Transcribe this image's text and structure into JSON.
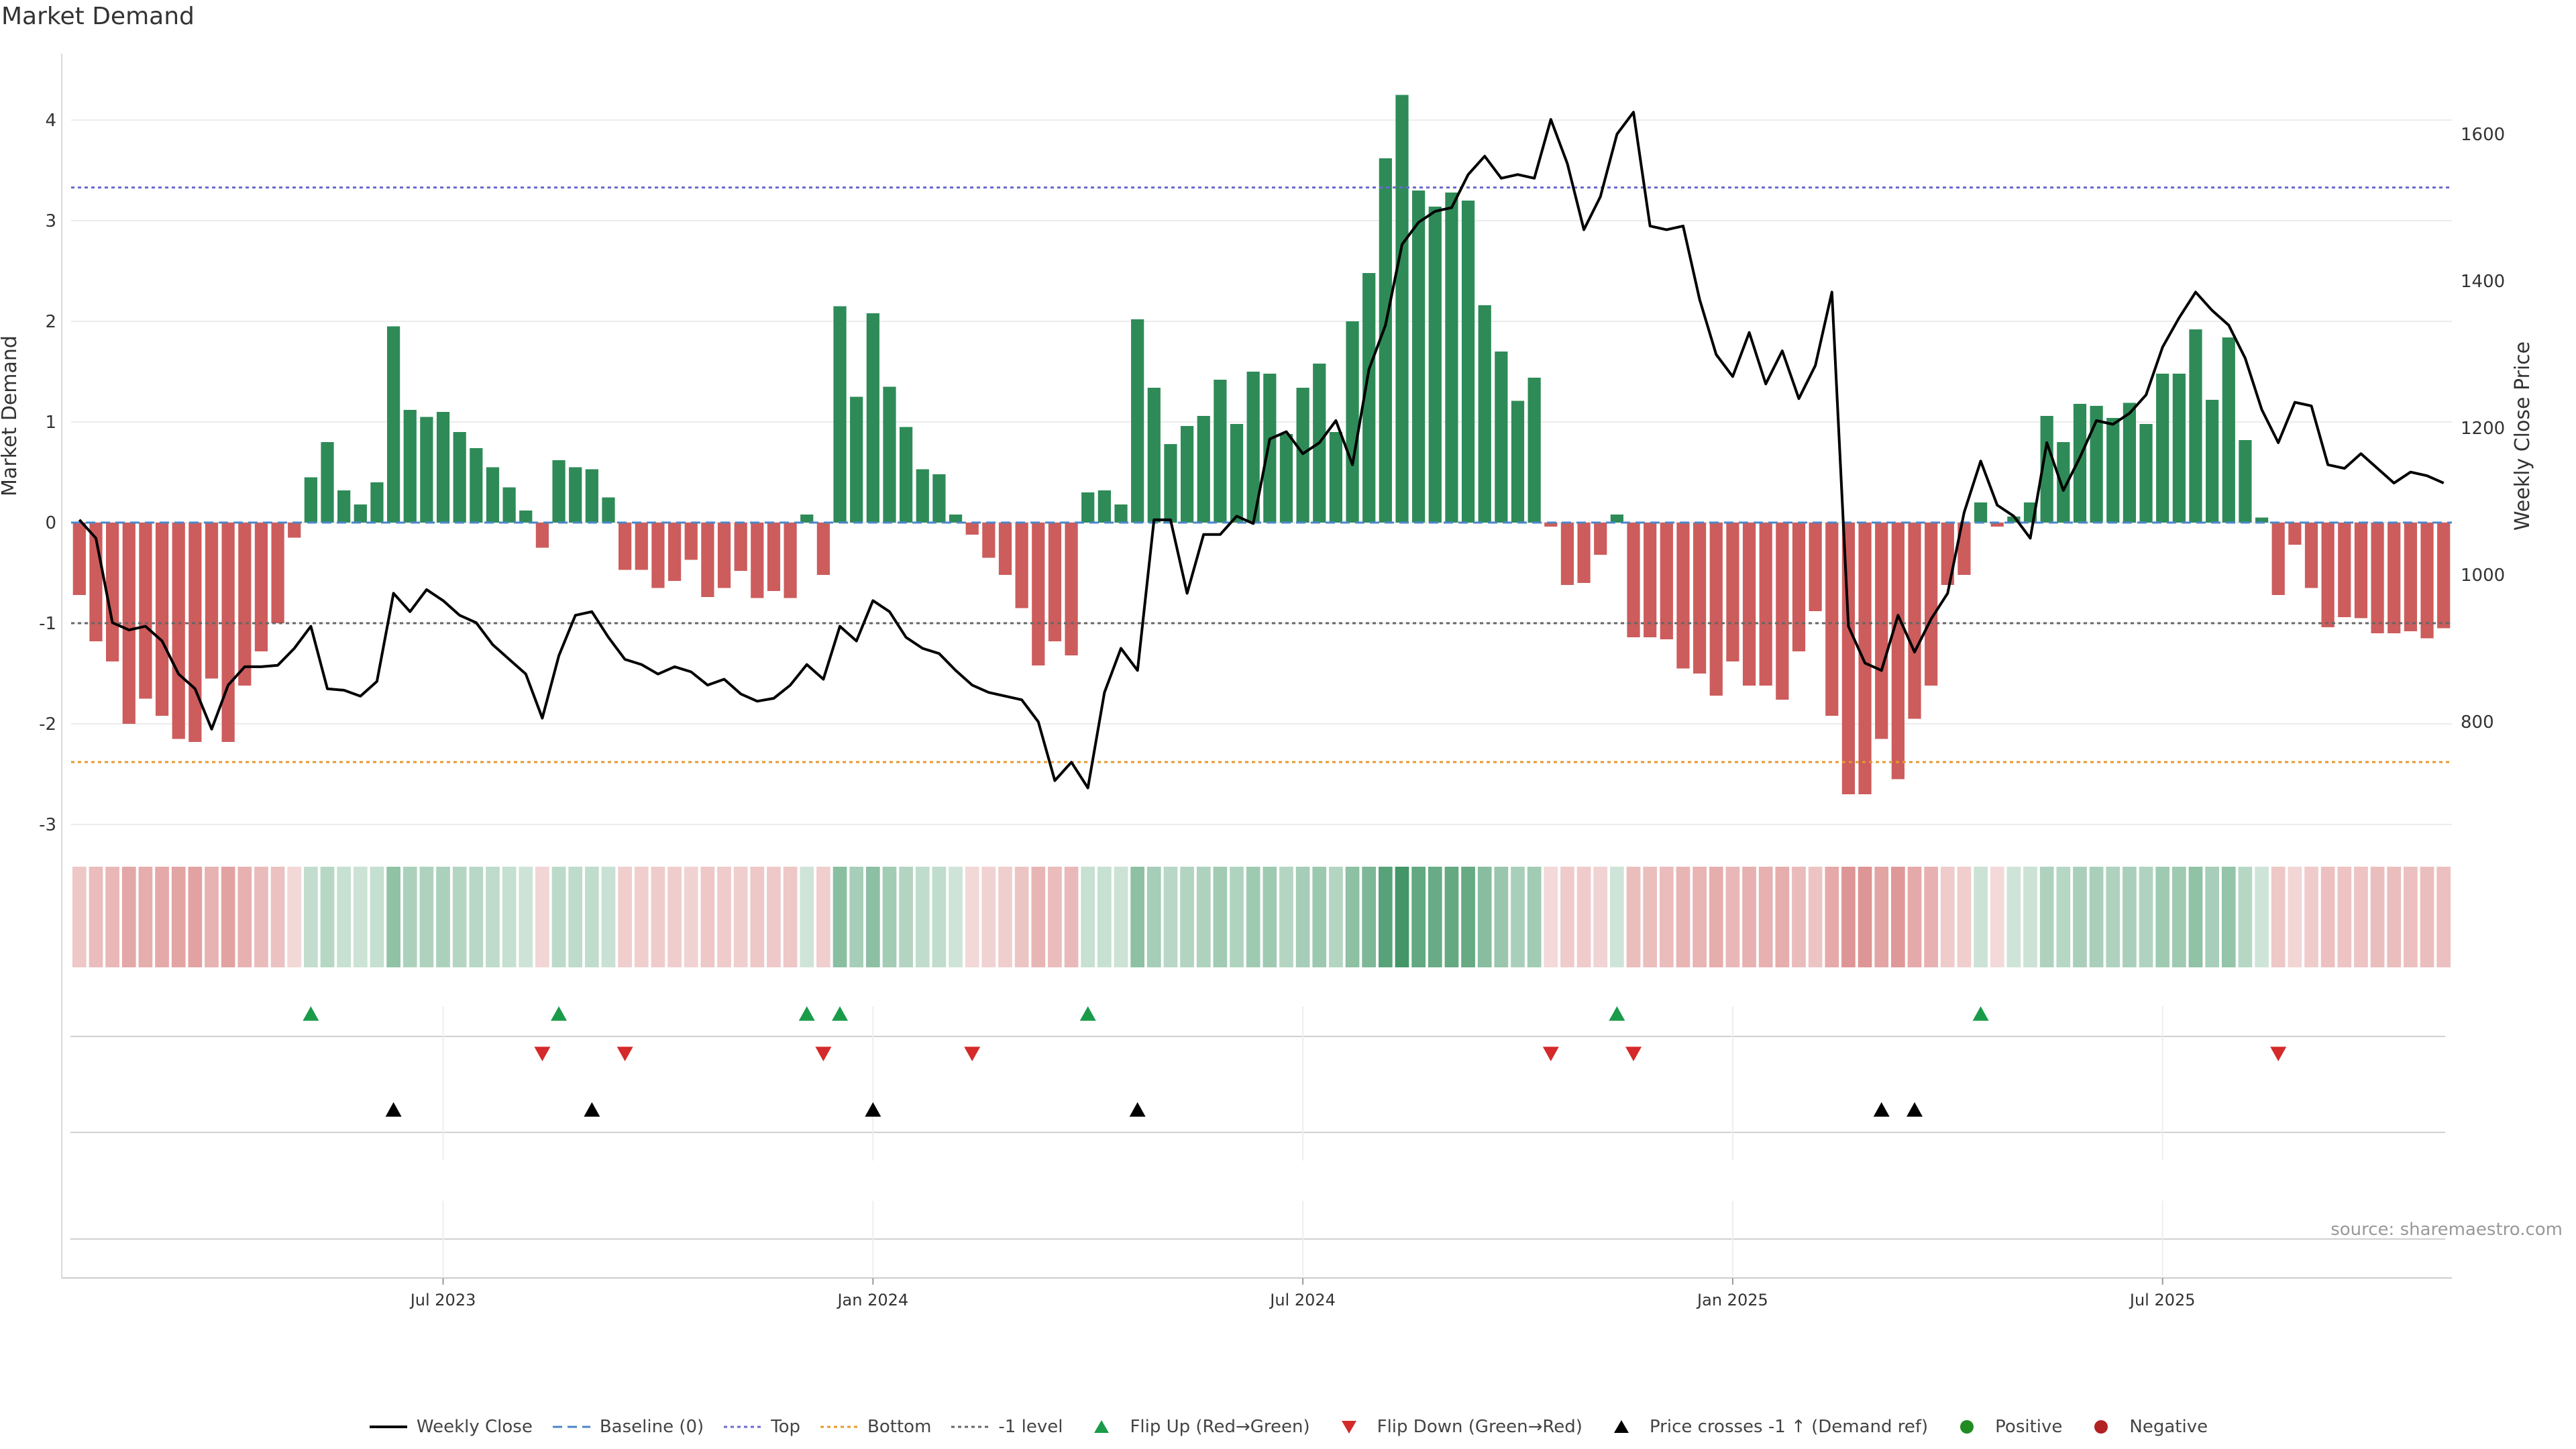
{
  "title": "Market Demand",
  "source": "source: sharemaestro.com",
  "colors": {
    "positive": "#2e8b57",
    "negative": "#cd5c5c",
    "price": "#000000",
    "top": "#6a6ad0",
    "bottom": "#e69a2e",
    "minus_one": "#666666",
    "baseline": "#4a86c8",
    "flip_up": "#1a9b4a",
    "flip_down": "#d42a2a",
    "cross": "#000000",
    "positive_dot": "#228b22",
    "negative_dot": "#b22222"
  },
  "legend": [
    {
      "key": "weekly_close",
      "label": "Weekly Close",
      "icon": "solid-line-icon"
    },
    {
      "key": "baseline",
      "label": "Baseline (0)",
      "icon": "dashed-line-icon"
    },
    {
      "key": "top",
      "label": "Top",
      "icon": "dotted-line-icon"
    },
    {
      "key": "bottom",
      "label": "Bottom",
      "icon": "dotted-line-icon"
    },
    {
      "key": "minus_one",
      "label": "-1 level",
      "icon": "dotted-line-icon"
    },
    {
      "key": "flip_up",
      "label": "Flip Up (Red→Green)",
      "icon": "triangle-up-icon"
    },
    {
      "key": "flip_down",
      "label": "Flip Down (Green→Red)",
      "icon": "triangle-down-icon"
    },
    {
      "key": "cross",
      "label": "Price crosses -1 ↑ (Demand ref)",
      "icon": "triangle-up-icon"
    },
    {
      "key": "positive_dot",
      "label": "Positive",
      "icon": "circle-icon"
    },
    {
      "key": "negative_dot",
      "label": "Negative",
      "icon": "circle-icon"
    }
  ],
  "chart_data": {
    "type": "bar",
    "ylabel": "Market Demand",
    "y2label": "Weekly Close Price",
    "ylim": [
      -3.3,
      4.7
    ],
    "y2lim": [
      610,
      1700
    ],
    "yticks": [
      4,
      3,
      2,
      1,
      0,
      -1,
      -2,
      -3
    ],
    "y2ticks": [
      1600,
      1400,
      1200,
      1000,
      800
    ],
    "xticks": [
      "Jul 2023",
      "Jan 2024",
      "Jul 2024",
      "Jan 2025",
      "Jul 2025"
    ],
    "xtick_week_index": [
      22,
      48,
      74,
      100,
      126
    ],
    "top_level": 3.33,
    "bottom_level": -2.38,
    "minus_one_level": -1,
    "baseline": 0,
    "demand": [
      -0.72,
      -1.18,
      -1.38,
      -2.0,
      -1.75,
      -1.92,
      -2.15,
      -2.18,
      -1.55,
      -2.18,
      -1.62,
      -1.28,
      -1.0,
      -0.15,
      0.45,
      0.8,
      0.32,
      0.18,
      0.4,
      1.95,
      1.12,
      1.05,
      1.1,
      0.9,
      0.74,
      0.55,
      0.35,
      0.12,
      -0.25,
      0.62,
      0.55,
      0.53,
      0.25,
      -0.47,
      -0.47,
      -0.65,
      -0.58,
      -0.37,
      -0.74,
      -0.65,
      -0.48,
      -0.75,
      -0.68,
      -0.75,
      0.08,
      -0.52,
      2.15,
      1.25,
      2.08,
      1.35,
      0.95,
      0.53,
      0.48,
      0.08,
      -0.12,
      -0.35,
      -0.52,
      -0.85,
      -1.42,
      -1.18,
      -1.32,
      0.3,
      0.32,
      0.18,
      2.02,
      1.34,
      0.78,
      0.96,
      1.06,
      1.42,
      0.98,
      1.5,
      1.48,
      0.88,
      1.34,
      1.58,
      0.9,
      2.0,
      2.48,
      3.62,
      4.25,
      3.3,
      3.14,
      3.28,
      3.2,
      2.16,
      1.7,
      1.21,
      1.44,
      -0.04,
      -0.62,
      -0.6,
      -0.32,
      0.08,
      -1.14,
      -1.14,
      -1.16,
      -1.45,
      -1.5,
      -1.72,
      -1.38,
      -1.62,
      -1.62,
      -1.76,
      -1.28,
      -0.88,
      -1.92,
      -2.7,
      -2.7,
      -2.15,
      -2.55,
      -1.95,
      -1.62,
      -0.62,
      -0.52,
      0.2,
      -0.04,
      0.06,
      0.2,
      1.06,
      0.8,
      1.18,
      1.16,
      1.04,
      1.19,
      0.98,
      1.48,
      1.48,
      1.92,
      1.22,
      1.84,
      0.82,
      0.05,
      -0.72,
      -0.22,
      -0.65,
      -1.04,
      -0.94,
      -0.95,
      -1.1,
      -1.1,
      -1.08,
      -1.15,
      -1.05
    ],
    "close": [
      1075,
      1050,
      935,
      925,
      930,
      910,
      865,
      845,
      790,
      850,
      875,
      875,
      877,
      900,
      930,
      845,
      843,
      835,
      855,
      975,
      950,
      980,
      965,
      945,
      935,
      905,
      885,
      865,
      805,
      890,
      945,
      950,
      915,
      885,
      878,
      865,
      875,
      868,
      850,
      858,
      838,
      828,
      832,
      850,
      878,
      858,
      930,
      910,
      965,
      950,
      915,
      900,
      893,
      870,
      850,
      840,
      835,
      830,
      800,
      720,
      745,
      710,
      840,
      900,
      870,
      1075,
      1075,
      975,
      1055,
      1055,
      1080,
      1070,
      1185,
      1195,
      1165,
      1180,
      1210,
      1150,
      1280,
      1340,
      1450,
      1480,
      1495,
      1500,
      1545,
      1570,
      1540,
      1545,
      1540,
      1620,
      1560,
      1470,
      1515,
      1600,
      1630,
      1475,
      1470,
      1475,
      1375,
      1300,
      1270,
      1330,
      1260,
      1305,
      1240,
      1285,
      1385,
      930,
      880,
      870,
      945,
      895,
      940,
      975,
      1085,
      1155,
      1095,
      1080,
      1050,
      1180,
      1115,
      1160,
      1210,
      1205,
      1220,
      1245,
      1310,
      1350,
      1385,
      1360,
      1340,
      1295,
      1225,
      1180,
      1235,
      1230,
      1150,
      1145,
      1165,
      1145,
      1125,
      1140,
      1135,
      1125
    ],
    "flip_up_weeks": [
      14,
      29,
      44,
      46,
      61,
      93,
      115
    ],
    "flip_down_weeks": [
      28,
      33,
      45,
      54,
      89,
      94,
      133
    ],
    "cross_up_weeks": [
      19,
      31,
      48,
      64,
      109,
      111
    ]
  }
}
